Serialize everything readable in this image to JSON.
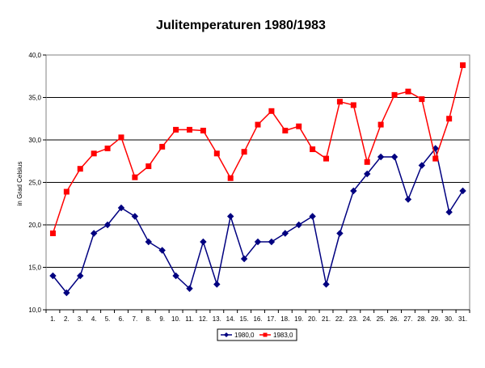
{
  "chart_data": {
    "type": "line",
    "title": "Julitemperaturen 1980/1983",
    "ylabel": "in Grad Celsius",
    "xlabel": "",
    "ylim": [
      10,
      40
    ],
    "y_ticks": [
      "10,0",
      "15,0",
      "20,0",
      "25,0",
      "30,0",
      "35,0",
      "40,0"
    ],
    "y_tick_values": [
      10,
      15,
      20,
      25,
      30,
      35,
      40
    ],
    "grid": "horizontal",
    "legend": "bottom",
    "categories": [
      "1.",
      "2.",
      "3.",
      "4.",
      "5.",
      "6.",
      "7.",
      "8.",
      "9.",
      "10.",
      "11.",
      "12.",
      "13.",
      "14.",
      "15.",
      "16.",
      "17.",
      "18.",
      "19.",
      "20.",
      "21.",
      "22.",
      "23.",
      "24.",
      "25.",
      "26.",
      "27.",
      "28.",
      "29.",
      "30.",
      "31."
    ],
    "series": [
      {
        "name": "1980,0",
        "color": "#000080",
        "marker": "diamond",
        "values": [
          14,
          12,
          14,
          19,
          20,
          22,
          21,
          18,
          17,
          14,
          12.5,
          18,
          13,
          21,
          16,
          18,
          18,
          19,
          20,
          21,
          13,
          19,
          24,
          26,
          28,
          28,
          23,
          27,
          29,
          21.5,
          24
        ]
      },
      {
        "name": "1983,0",
        "color": "#ff0000",
        "marker": "square",
        "values": [
          19,
          23.9,
          26.6,
          28.4,
          29,
          30.3,
          25.6,
          26.9,
          29.2,
          31.2,
          31.2,
          31.1,
          28.4,
          25.5,
          28.6,
          31.8,
          33.4,
          31.1,
          31.6,
          28.9,
          27.8,
          34.5,
          34.1,
          27.4,
          31.8,
          35.3,
          35.7,
          34.8,
          27.8,
          32.5,
          38.8
        ]
      }
    ]
  }
}
